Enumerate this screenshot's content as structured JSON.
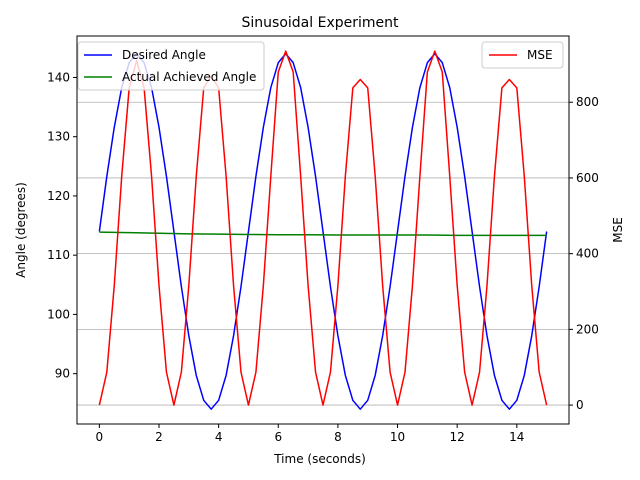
{
  "chart_data": {
    "type": "line",
    "title": "Sinusoidal Experiment",
    "xlabel": "Time (seconds)",
    "ylabel_left": "Angle (degrees)",
    "ylabel_right": "MSE",
    "xlim": [
      -0.75,
      15.75
    ],
    "ylim_left": [
      81.5,
      147.0
    ],
    "ylim_right": [
      -50,
      975
    ],
    "x_ticks": [
      0,
      2,
      4,
      6,
      8,
      10,
      12,
      14
    ],
    "x_tick_labels": [
      "0",
      "2",
      "4",
      "6",
      "8",
      "10",
      "12",
      "14"
    ],
    "y_left_ticks": [
      90,
      100,
      110,
      120,
      130,
      140
    ],
    "y_left_tick_labels": [
      "90",
      "100",
      "110",
      "120",
      "130",
      "140"
    ],
    "y_right_ticks": [
      0,
      200,
      400,
      600,
      800
    ],
    "y_right_tick_labels": [
      "0",
      "200",
      "400",
      "600",
      "800"
    ],
    "grid": "horizontal lines at right-axis ticks",
    "legend_left_position": "top-left",
    "legend_right_position": "top-right",
    "series": [
      {
        "name": "Desired Angle",
        "axis": "left",
        "color": "#0000ff",
        "x": [
          0,
          0.25,
          0.5,
          0.75,
          1.0,
          1.25,
          1.5,
          1.75,
          2.0,
          2.25,
          2.5,
          2.75,
          3.0,
          3.25,
          3.5,
          3.75,
          4.0,
          4.25,
          4.5,
          4.75,
          5.0,
          5.25,
          5.5,
          5.75,
          6.0,
          6.25,
          6.5,
          6.75,
          7.0,
          7.25,
          7.5,
          7.75,
          8.0,
          8.25,
          8.5,
          8.75,
          9.0,
          9.25,
          9.5,
          9.75,
          10.0,
          10.25,
          10.5,
          10.75,
          11.0,
          11.25,
          11.5,
          11.75,
          12.0,
          12.25,
          12.5,
          12.75,
          13.0,
          13.25,
          13.5,
          13.75,
          14.0,
          14.25,
          14.5,
          14.75,
          15.0
        ],
        "values": [
          114.0,
          123.3,
          131.6,
          138.3,
          142.5,
          144.0,
          142.5,
          138.3,
          131.6,
          123.3,
          114.0,
          104.7,
          96.4,
          89.7,
          85.5,
          84.0,
          85.5,
          89.7,
          96.4,
          104.7,
          114.0,
          123.3,
          131.6,
          138.3,
          142.5,
          144.0,
          142.5,
          138.3,
          131.6,
          123.3,
          114.0,
          104.7,
          96.4,
          89.7,
          85.5,
          84.0,
          85.5,
          89.7,
          96.4,
          104.7,
          114.0,
          123.3,
          131.6,
          138.3,
          142.5,
          144.0,
          142.5,
          138.3,
          131.6,
          123.3,
          114.0,
          104.7,
          96.4,
          89.7,
          85.5,
          84.0,
          85.5,
          89.7,
          96.4,
          104.7,
          114.0
        ]
      },
      {
        "name": "Actual Achieved Angle",
        "axis": "left",
        "color": "#008000",
        "x": [
          0,
          1,
          2,
          3,
          4,
          5,
          6,
          7,
          8,
          9,
          10,
          11,
          12,
          13,
          14,
          15
        ],
        "values": [
          113.9,
          113.8,
          113.7,
          113.6,
          113.55,
          113.5,
          113.45,
          113.45,
          113.4,
          113.4,
          113.4,
          113.4,
          113.35,
          113.35,
          113.35,
          113.35
        ]
      },
      {
        "name": "MSE",
        "axis": "right",
        "color": "#ff0000",
        "x": [
          0,
          0.25,
          0.5,
          0.75,
          1.0,
          1.25,
          1.5,
          1.75,
          2.0,
          2.25,
          2.5,
          2.75,
          3.0,
          3.25,
          3.5,
          3.75,
          4.0,
          4.25,
          4.5,
          4.75,
          5.0,
          5.25,
          5.5,
          5.75,
          6.0,
          6.25,
          6.5,
          6.75,
          7.0,
          7.25,
          7.5,
          7.75,
          8.0,
          8.25,
          8.5,
          8.75,
          9.0,
          9.25,
          9.5,
          9.75,
          10.0,
          10.25,
          10.5,
          10.75,
          11.0,
          11.25,
          11.5,
          11.75,
          12.0,
          12.25,
          12.5,
          12.75,
          13.0,
          13.25,
          13.5,
          13.75,
          14.0,
          14.25,
          14.5,
          14.75,
          15.0
        ],
        "values": [
          0,
          87,
          316,
          605,
          838,
          910,
          838,
          605,
          316,
          87,
          0,
          87,
          316,
          605,
          838,
          870,
          838,
          605,
          316,
          87,
          0,
          87,
          316,
          605,
          880,
          935,
          880,
          605,
          316,
          87,
          0,
          87,
          316,
          605,
          838,
          860,
          838,
          605,
          316,
          87,
          0,
          87,
          316,
          605,
          880,
          935,
          880,
          605,
          316,
          87,
          0,
          87,
          316,
          605,
          838,
          860,
          838,
          605,
          316,
          87,
          0
        ]
      }
    ]
  }
}
